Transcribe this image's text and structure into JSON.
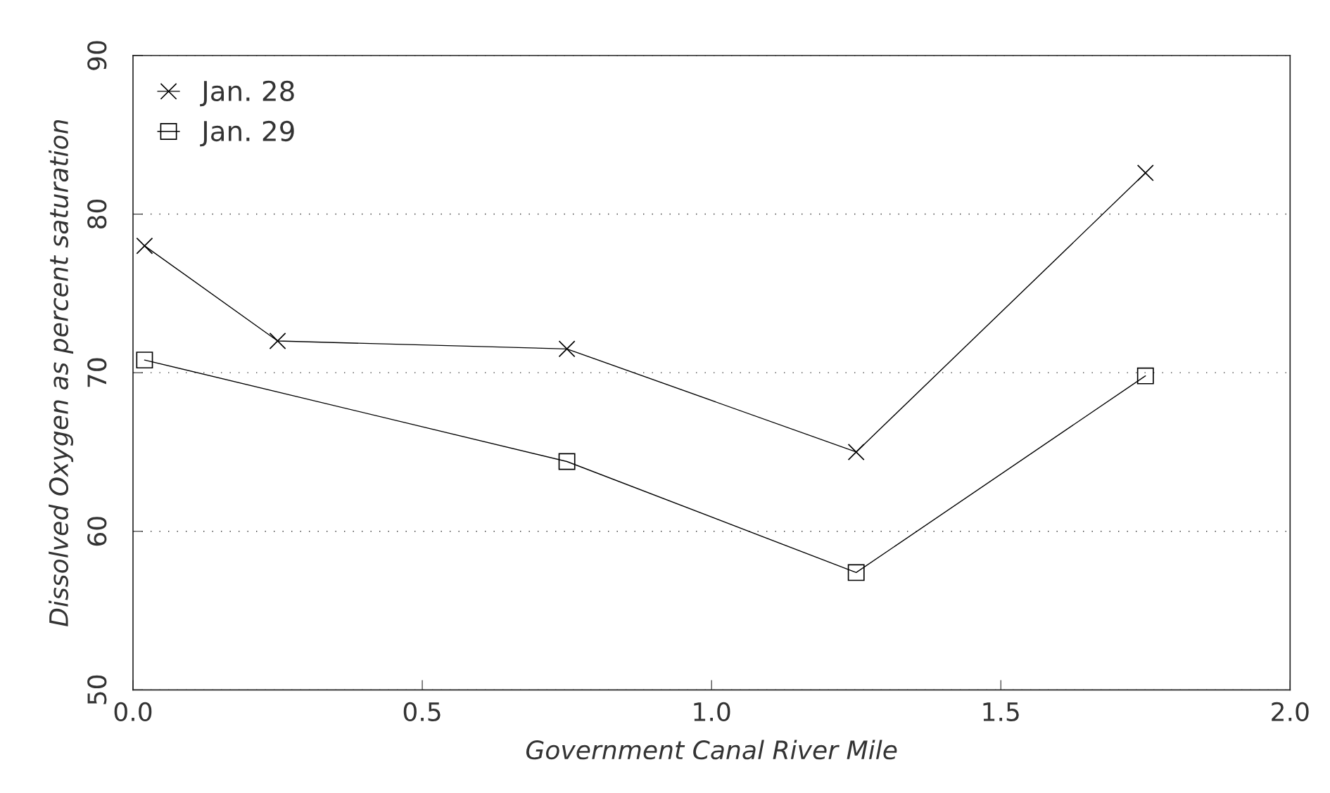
{
  "chart_data": {
    "type": "line",
    "xlabel": "Government Canal River Mile",
    "ylabel": "Dissolved Oxygen as percent saturation",
    "x": [
      0.02,
      0.25,
      0.75,
      1.25,
      1.75
    ],
    "series": [
      {
        "name": "Jan. 28",
        "color": "#000000",
        "marker": "cross",
        "values": [
          78.0,
          72.0,
          71.5,
          65.0,
          82.6
        ]
      },
      {
        "name": "Jan. 29",
        "color": "#000000",
        "marker": "square",
        "values": [
          70.8,
          null,
          64.4,
          57.4,
          69.8
        ]
      }
    ],
    "xlim": [
      0,
      2
    ],
    "xticks": [
      {
        "value": 0,
        "label": "0.0"
      },
      0.5,
      {
        "value": 1,
        "label": "1.0"
      },
      1.5,
      {
        "value": 2,
        "label": "2.0"
      }
    ],
    "ylim": [
      50,
      90
    ],
    "yticks": [
      50,
      60,
      70,
      80,
      90
    ],
    "grid": "y",
    "legend": "top left",
    "line_style": "solid"
  }
}
